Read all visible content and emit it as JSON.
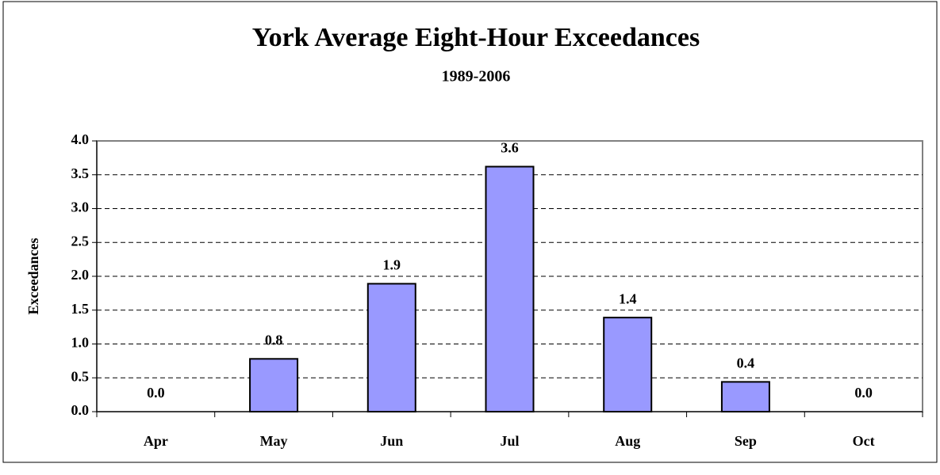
{
  "chart_data": {
    "type": "bar",
    "title": "York Average Eight-Hour Exceedances",
    "subtitle": "1989-2006",
    "y_label": "Exceedances",
    "categories": [
      "Apr",
      "May",
      "Jun",
      "Jul",
      "Aug",
      "Sep",
      "Oct"
    ],
    "values": [
      0,
      0.78,
      1.89,
      3.62,
      1.39,
      0.44,
      0
    ],
    "value_labels": [
      "0.0",
      "0.8",
      "1.9",
      "3.6",
      "1.4",
      "0.4",
      "0.0"
    ],
    "color": "#9999ff",
    "ylim": [
      0,
      4
    ],
    "yticks": [
      {
        "value": 0,
        "label": "0.0"
      },
      0.5,
      {
        "value": 1,
        "label": "1.0"
      },
      1.5,
      {
        "value": 2,
        "label": "2.0"
      },
      2.5,
      {
        "value": 3,
        "label": "3.0"
      },
      3.5,
      {
        "value": 4,
        "label": "4.0"
      }
    ],
    "grid": true
  }
}
